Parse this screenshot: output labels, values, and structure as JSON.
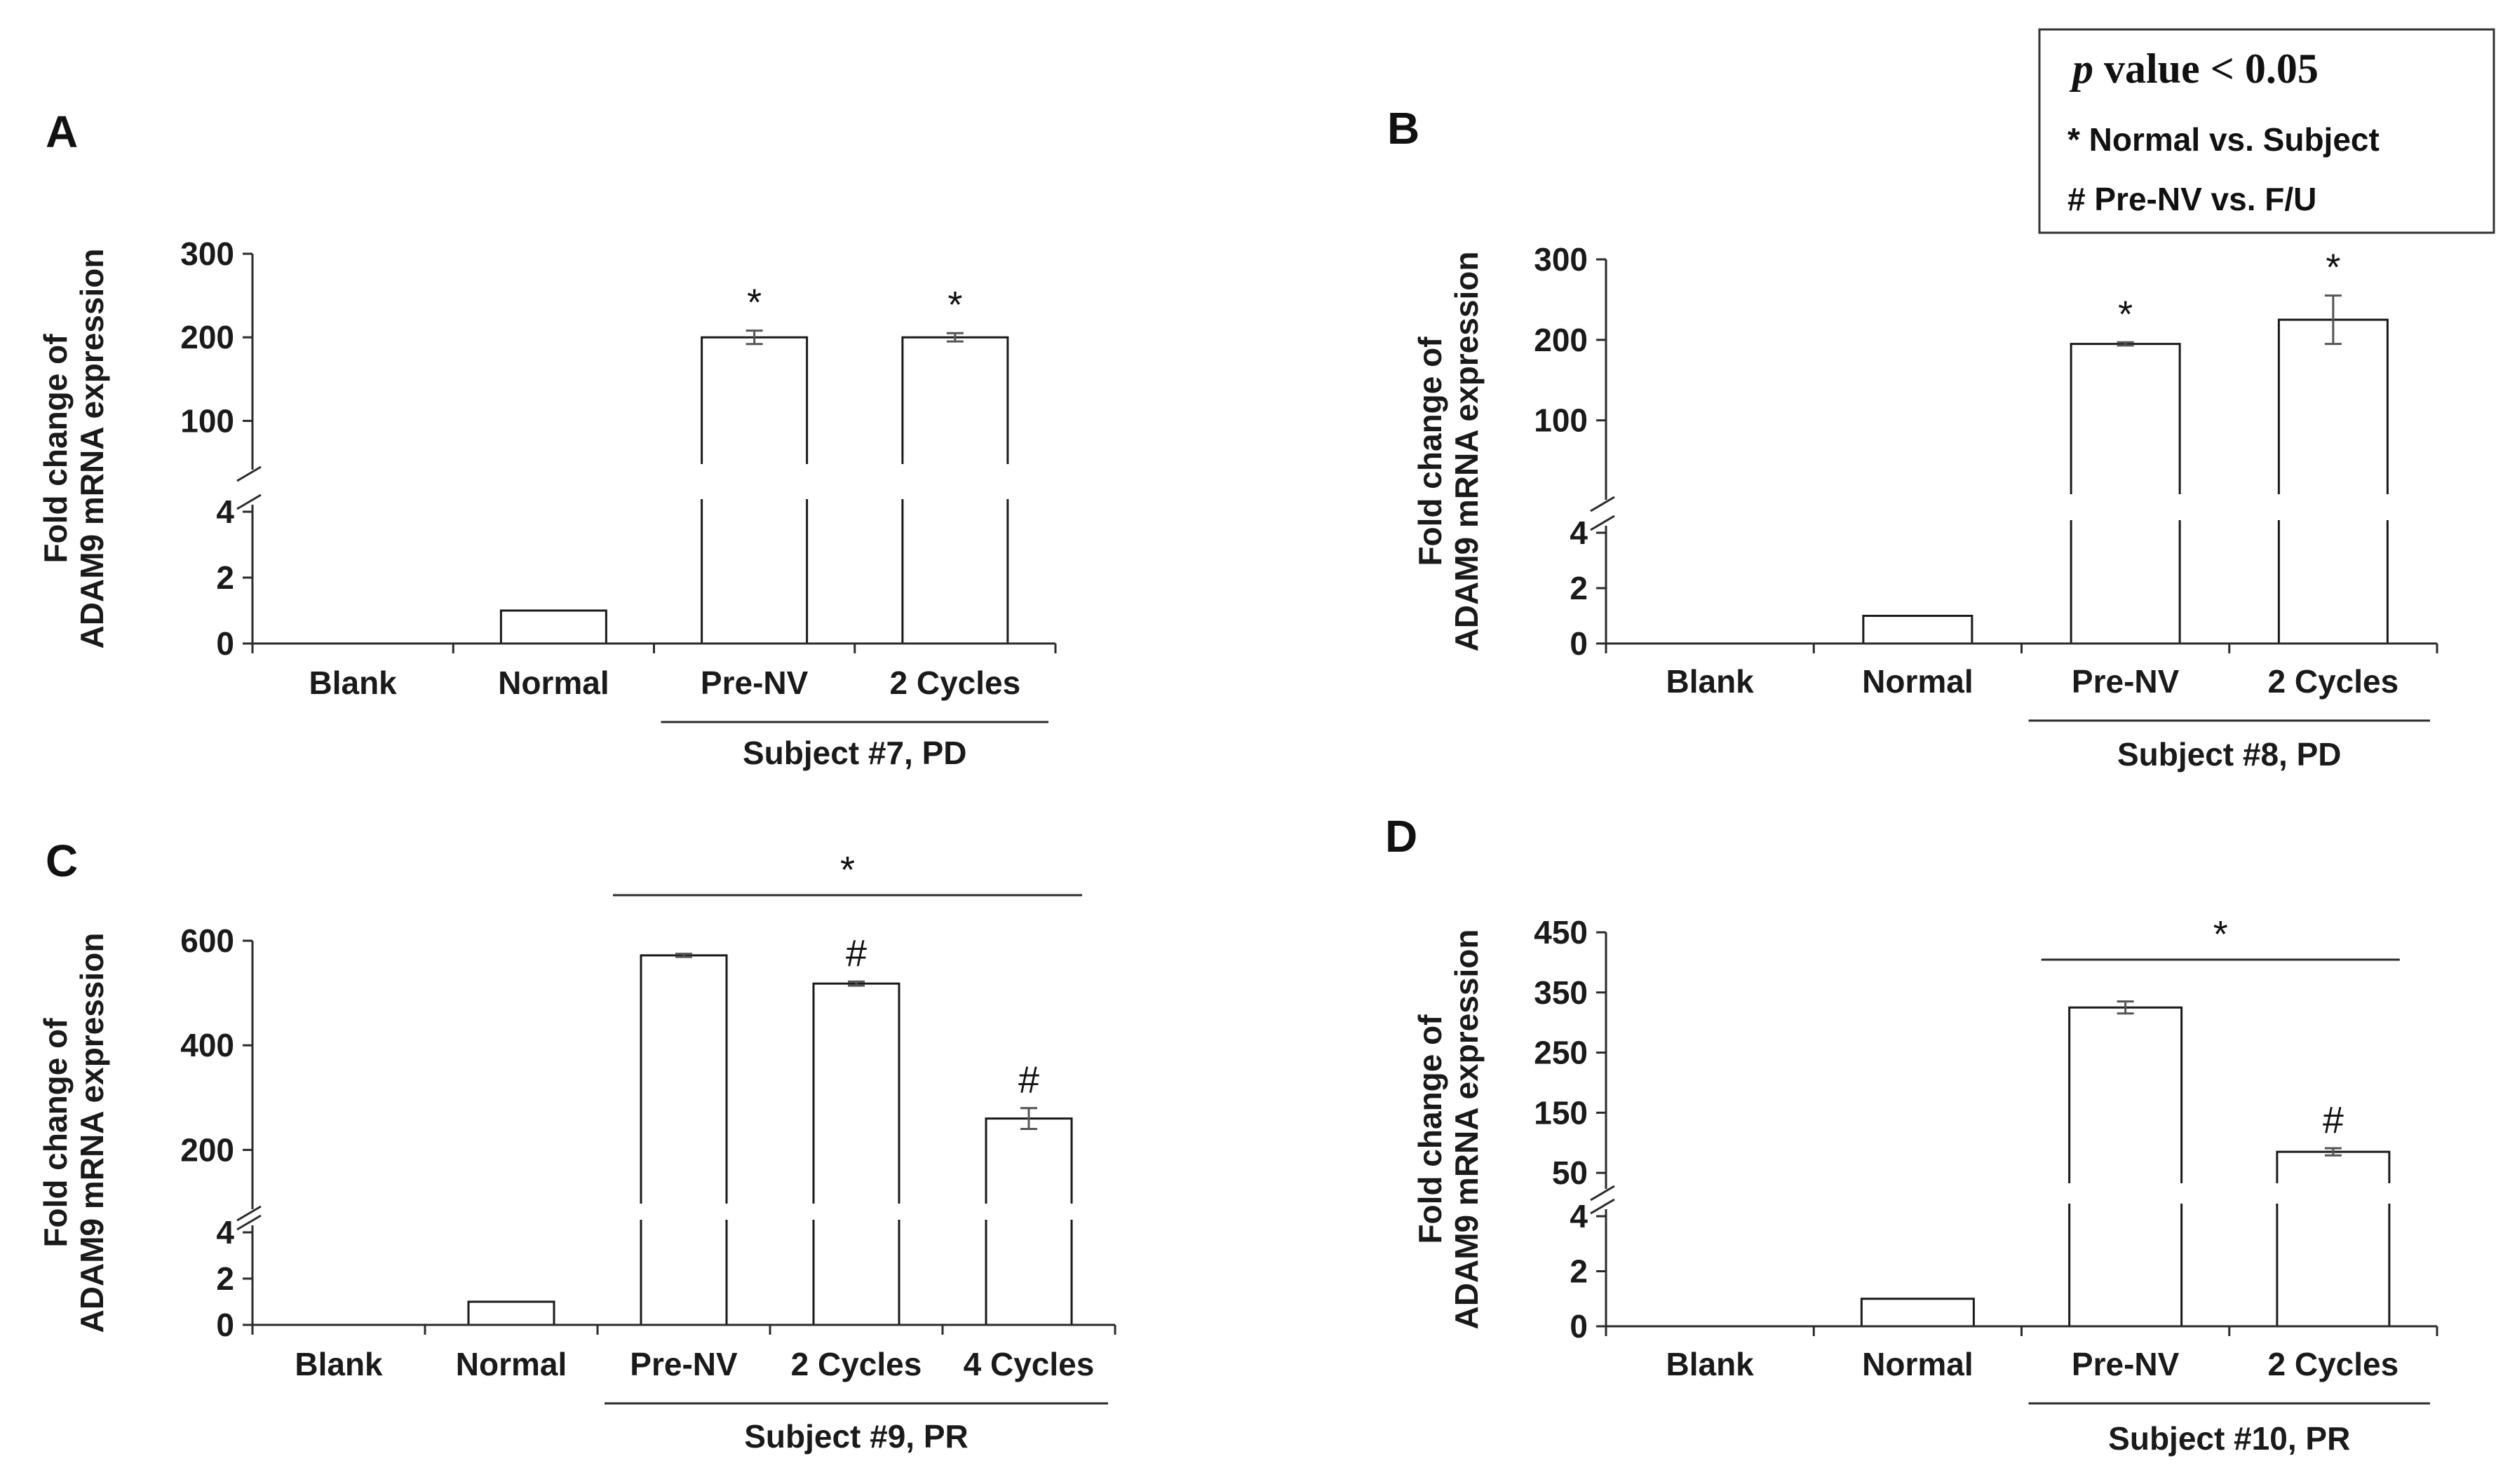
{
  "legend": {
    "p_symbol": "p",
    "p_text": " value < 0.05",
    "line1": "* Normal vs. Subject",
    "line2": "# Pre-NV vs. F/U"
  },
  "chart_data": [
    {
      "panel": "A",
      "type": "bar",
      "ylabel_line1": "Fold change of",
      "ylabel_line2": "ADAM9 mRNA expression",
      "categories": [
        "Blank",
        "Normal",
        "Pre-NV",
        "2 Cycles"
      ],
      "values": [
        0,
        1,
        200,
        200
      ],
      "errors": [
        0,
        0,
        8,
        5
      ],
      "markers": [
        "",
        "",
        "*",
        "*"
      ],
      "group_label": "Subject #7, PD",
      "group_span": [
        2,
        3
      ],
      "bracket_marker": "",
      "lower_axis": {
        "range": [
          0,
          4
        ],
        "ticks": [
          0,
          2,
          4
        ]
      },
      "upper_axis": {
        "range": [
          50,
          300
        ],
        "ticks": [
          100,
          200,
          300
        ]
      }
    },
    {
      "panel": "B",
      "type": "bar",
      "ylabel_line1": "Fold change of",
      "ylabel_line2": "ADAM9 mRNA expression",
      "categories": [
        "Blank",
        "Normal",
        "Pre-NV",
        "2 Cycles"
      ],
      "values": [
        0,
        1,
        195,
        225
      ],
      "errors": [
        0,
        0,
        2,
        30
      ],
      "markers": [
        "",
        "",
        "*",
        "*"
      ],
      "group_label": "Subject #8, PD",
      "group_span": [
        2,
        3
      ],
      "bracket_marker": "",
      "lower_axis": {
        "range": [
          0,
          4
        ],
        "ticks": [
          0,
          2,
          4
        ]
      },
      "upper_axis": {
        "range": [
          10,
          300
        ],
        "ticks": [
          100,
          200,
          300
        ]
      }
    },
    {
      "panel": "C",
      "type": "bar",
      "ylabel_line1": "Fold change of",
      "ylabel_line2": "ADAM9 mRNA expression",
      "categories": [
        "Blank",
        "Normal",
        "Pre-NV",
        "2 Cycles",
        "4 Cycles"
      ],
      "values": [
        0,
        1,
        572,
        518,
        260
      ],
      "errors": [
        0,
        0,
        3,
        4,
        20
      ],
      "markers": [
        "",
        "",
        "",
        "#",
        "#"
      ],
      "group_label": "Subject #9, PR",
      "group_span": [
        2,
        4
      ],
      "bracket_marker": "*",
      "lower_axis": {
        "range": [
          0,
          4
        ],
        "ticks": [
          0,
          2,
          4
        ]
      },
      "upper_axis": {
        "range": [
          100,
          600
        ],
        "ticks": [
          200,
          400,
          600
        ]
      }
    },
    {
      "panel": "D",
      "type": "bar",
      "ylabel_line1": "Fold change of",
      "ylabel_line2": "ADAM9 mRNA expression",
      "categories": [
        "Blank",
        "Normal",
        "Pre-NV",
        "2 Cycles"
      ],
      "values": [
        0,
        1,
        325,
        85
      ],
      "errors": [
        0,
        0,
        10,
        6
      ],
      "markers": [
        "",
        "",
        "",
        "#"
      ],
      "group_label": "Subject #10, PR",
      "group_span": [
        2,
        3
      ],
      "bracket_marker": "*",
      "lower_axis": {
        "range": [
          0,
          4
        ],
        "ticks": [
          0,
          2,
          4
        ]
      },
      "upper_axis": {
        "range": [
          35,
          450
        ],
        "ticks": [
          50,
          150,
          250,
          350,
          450
        ]
      }
    }
  ]
}
